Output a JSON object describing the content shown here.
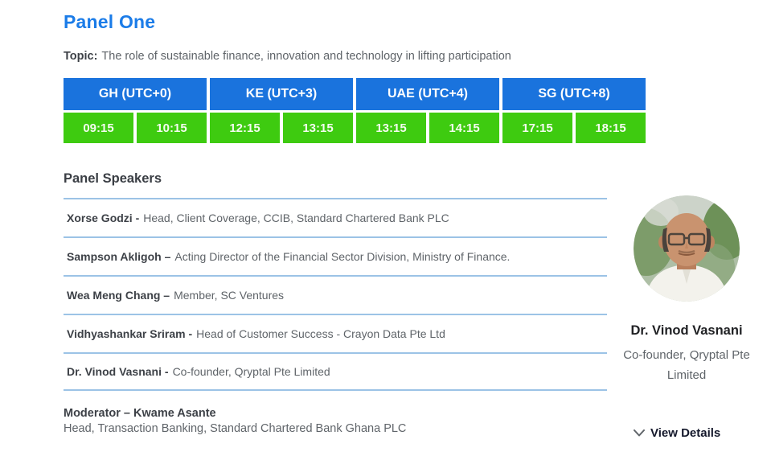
{
  "page": {
    "title": "Panel One",
    "accent_blue": "#1b7ce8"
  },
  "topic": {
    "label": "Topic:",
    "text": "The role of sustainable finance, innovation and technology in lifting participation"
  },
  "schedule": {
    "header_color": "#1a73dd",
    "cell_color": "#3ecb10",
    "headers": [
      "GH (UTC+0)",
      "KE (UTC+3)",
      "UAE (UTC+4)",
      "SG (UTC+8)"
    ],
    "times": [
      "09:15",
      "10:15",
      "12:15",
      "13:15",
      "13:15",
      "14:15",
      "17:15",
      "18:15"
    ]
  },
  "speakers": {
    "heading": "Panel Speakers",
    "items": [
      {
        "name": "Xorse Godzi -",
        "role": "Head, Client Coverage, CCIB, Standard Chartered Bank PLC"
      },
      {
        "name": "Sampson Akligoh –",
        "role": "Acting Director of the Financial Sector Division, Ministry of Finance."
      },
      {
        "name": "Wea Meng Chang –",
        "role": "Member, SC Ventures"
      },
      {
        "name": "Vidhyashankar Sriram -",
        "role": "Head of Customer Success - Crayon Data Pte Ltd"
      },
      {
        "name": "Dr. Vinod Vasnani -",
        "role": "Co-founder, Qryptal Pte Limited"
      }
    ]
  },
  "moderator": {
    "name": "Moderator – Kwame Asante",
    "role": "Head, Transaction Banking, Standard Chartered Bank Ghana PLC"
  },
  "profile": {
    "name": "Dr. Vinod Vasnani",
    "role": "Co-founder, Qryptal Pte Limited"
  },
  "actions": {
    "view_details": "View Details"
  }
}
